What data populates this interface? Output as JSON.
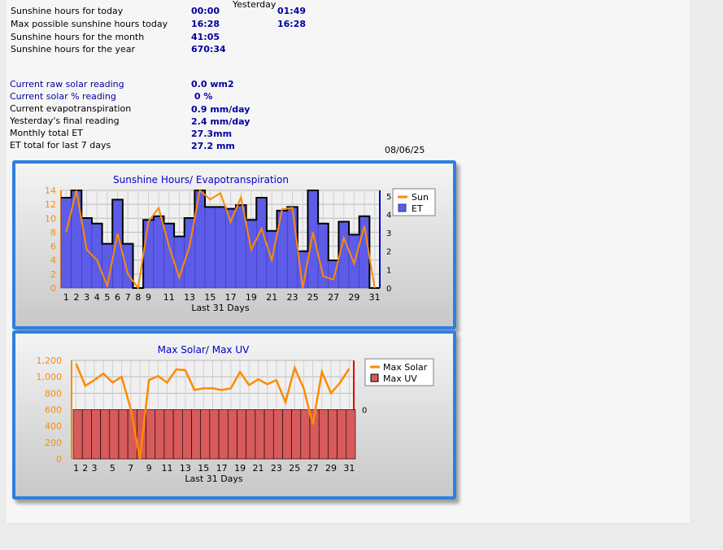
{
  "stats": {
    "yesterday_header": "Yesterday",
    "rows": [
      {
        "label": "Sunshine hours for today",
        "value": "00:00",
        "yesterday": "01:49",
        "style": ""
      },
      {
        "label": "Max possible sunshine hours today",
        "value": "16:28",
        "yesterday": "16:28",
        "style": ""
      },
      {
        "label": "Sunshine hours for the month",
        "value": "41:05",
        "yesterday": "",
        "style": ""
      },
      {
        "label": "Sunshine hours for the year",
        "value": "670:34",
        "yesterday": "",
        "style": ""
      }
    ],
    "rows2": [
      {
        "label": "Current raw solar reading",
        "value": "0.0 wm2",
        "style": "blue"
      },
      {
        "label": "Current solar % reading",
        "value": " 0 %",
        "style": "blue"
      },
      {
        "label": "Current evapotranspiration",
        "value": "0.9 mm/day",
        "style": ""
      },
      {
        "label": "Yesterday's final reading",
        "value": "2.4 mm/day",
        "style": ""
      },
      {
        "label": "Monthly total ET",
        "value": "27.3mm",
        "style": ""
      },
      {
        "label": "ET total for last 7 days",
        "value": "27.2 mm",
        "style": ""
      }
    ],
    "date": "08/06/25"
  },
  "colors": {
    "sun": "#ff8a00",
    "et_fill": "#5c5ce8",
    "et_line": "#a83c5a",
    "uv_fill": "#d85a5a",
    "frame": "#2f7fe0",
    "axis_left": "#ff8a00",
    "axis_right_blue": "#0000cc",
    "axis_right_red": "#e00000"
  },
  "chart_data": [
    {
      "type": "bar",
      "title": "Sunshine Hours/ Evapotranspiration",
      "xlabel": "Last 31 Days",
      "x": [
        1,
        2,
        3,
        4,
        5,
        6,
        7,
        8,
        9,
        10,
        11,
        12,
        13,
        14,
        15,
        16,
        17,
        18,
        19,
        20,
        21,
        22,
        23,
        24,
        25,
        26,
        27,
        28,
        29,
        30,
        31
      ],
      "x_tick_labels": [
        "1",
        "2",
        "3",
        "4",
        "5",
        "6",
        "7",
        "8",
        "9",
        "11",
        "13",
        "15",
        "17",
        "19",
        "21",
        "23",
        "25",
        "27",
        "29",
        "31"
      ],
      "legend": [
        "Sun",
        "ET"
      ],
      "legend_position": "top-right",
      "y_left": {
        "lim": [
          0,
          14
        ],
        "ticks": [
          "0",
          "2",
          "4",
          "6",
          "8",
          "10",
          "12",
          "14"
        ]
      },
      "y_right": {
        "lim": [
          0,
          5.3
        ],
        "ticks": [
          "0",
          "1",
          "2",
          "3",
          "4",
          "5"
        ]
      },
      "series": [
        {
          "name": "ET",
          "type": "bar",
          "axis": "right",
          "values": [
            4.9,
            5.3,
            3.8,
            3.5,
            2.4,
            4.8,
            2.4,
            0,
            3.7,
            3.9,
            3.5,
            2.8,
            3.8,
            5.3,
            4.4,
            4.4,
            4.3,
            4.5,
            3.7,
            4.9,
            3.1,
            4.2,
            4.4,
            2.0,
            5.3,
            3.5,
            1.5,
            3.6,
            2.9,
            3.9,
            0
          ]
        },
        {
          "name": "Sun",
          "type": "line",
          "axis": "left",
          "values": [
            8,
            14,
            5.5,
            4,
            0.3,
            7.8,
            2,
            0,
            9.5,
            11.5,
            6,
            1.5,
            6,
            14,
            12.7,
            13.6,
            9.5,
            13,
            5.5,
            8.5,
            4,
            11.3,
            11.5,
            0,
            8,
            1.7,
            1.2,
            7.2,
            3.5,
            8.9,
            0
          ]
        }
      ],
      "grid": true
    },
    {
      "type": "line",
      "title": "Max Solar/ Max UV",
      "xlabel": "Last 31 Days",
      "x": [
        1,
        2,
        3,
        4,
        5,
        6,
        7,
        8,
        9,
        10,
        11,
        12,
        13,
        14,
        15,
        16,
        17,
        18,
        19,
        20,
        21,
        22,
        23,
        24,
        25,
        26,
        27,
        28,
        29,
        30,
        31
      ],
      "x_tick_labels": [
        "1",
        "2",
        "3",
        "5",
        "7",
        "9",
        "11",
        "13",
        "15",
        "17",
        "19",
        "21",
        "23",
        "25",
        "27",
        "29",
        "31"
      ],
      "legend": [
        "Max Solar",
        "Max UV"
      ],
      "legend_position": "top-right",
      "y_left": {
        "lim": [
          0,
          1200
        ],
        "ticks": [
          "0",
          "200",
          "400",
          "600",
          "800",
          "1,000",
          "1,200"
        ]
      },
      "y_right": {
        "ticks": [
          "0"
        ]
      },
      "series": [
        {
          "name": "Max Solar",
          "type": "line",
          "axis": "left",
          "values": [
            1160,
            890,
            960,
            1040,
            930,
            1000,
            610,
            0,
            960,
            1010,
            930,
            1090,
            1080,
            840,
            860,
            860,
            840,
            860,
            1060,
            900,
            970,
            910,
            960,
            690,
            1110,
            860,
            420,
            1060,
            800,
            930,
            1100
          ]
        },
        {
          "name": "Max UV",
          "type": "bar",
          "axis": "right",
          "values": [
            0,
            0,
            0,
            0,
            0,
            0,
            0,
            0,
            0,
            0,
            0,
            0,
            0,
            0,
            0,
            0,
            0,
            0,
            0,
            0,
            0,
            0,
            0,
            0,
            0,
            0,
            0,
            0,
            0,
            0,
            0
          ]
        }
      ],
      "grid": true
    }
  ]
}
